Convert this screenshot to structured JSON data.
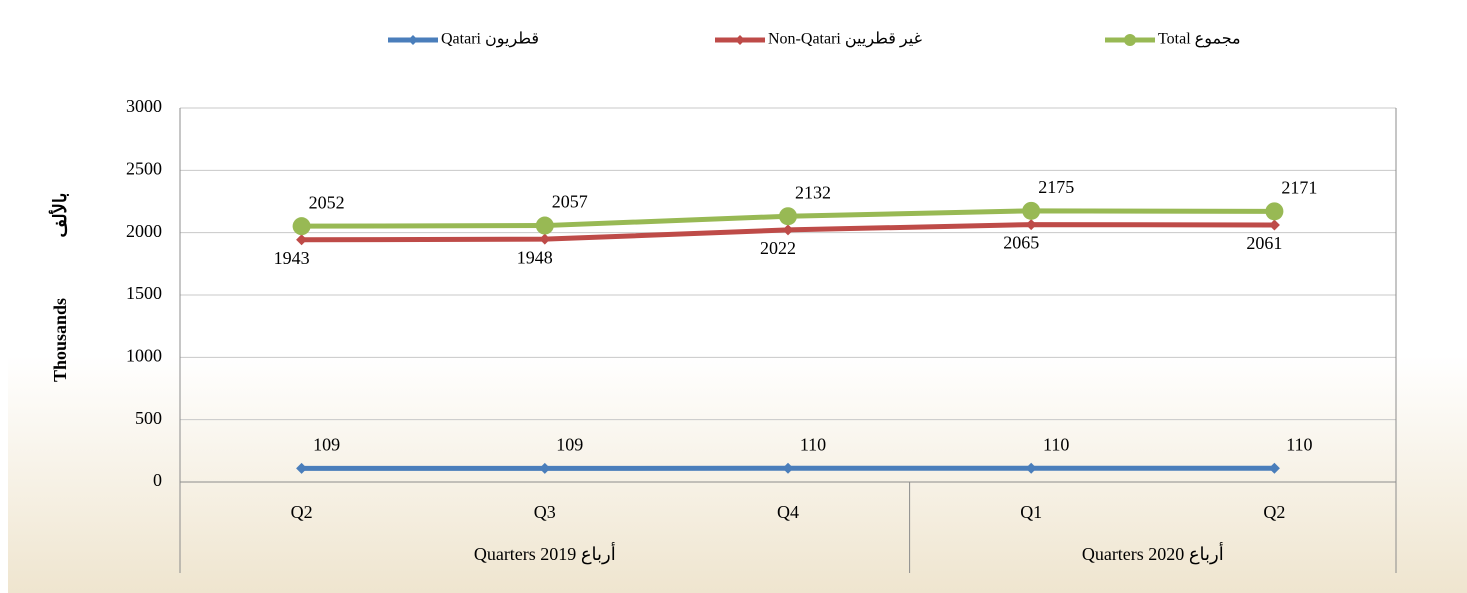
{
  "chart_data": {
    "type": "line",
    "categories": [
      "Q2",
      "Q3",
      "Q4",
      "Q1",
      "Q2"
    ],
    "groups": [
      {
        "label": "Quarters 2019 أرباع",
        "span": 3
      },
      {
        "label": "Quarters 2020 أرباع",
        "span": 2
      }
    ],
    "series": [
      {
        "name": "Qatari قطريون",
        "color": "#4a7ebb",
        "marker": "diamond",
        "values": [
          109,
          109,
          110,
          110,
          110
        ]
      },
      {
        "name": "Non-Qatari غير قطريين",
        "color": "#be4b48",
        "marker": "diamond",
        "values": [
          1943,
          1948,
          2022,
          2065,
          2061
        ]
      },
      {
        "name": "Total مجموع",
        "color": "#98b954",
        "marker": "circle",
        "values": [
          2052,
          2057,
          2132,
          2175,
          2171
        ]
      }
    ],
    "ylabel": "Thousands",
    "ylabel_ar": "بالألف",
    "ylim": [
      0,
      3000
    ],
    "yticks": [
      0,
      500,
      1000,
      1500,
      2000,
      2500,
      3000
    ],
    "grid": true,
    "legend": "top"
  }
}
